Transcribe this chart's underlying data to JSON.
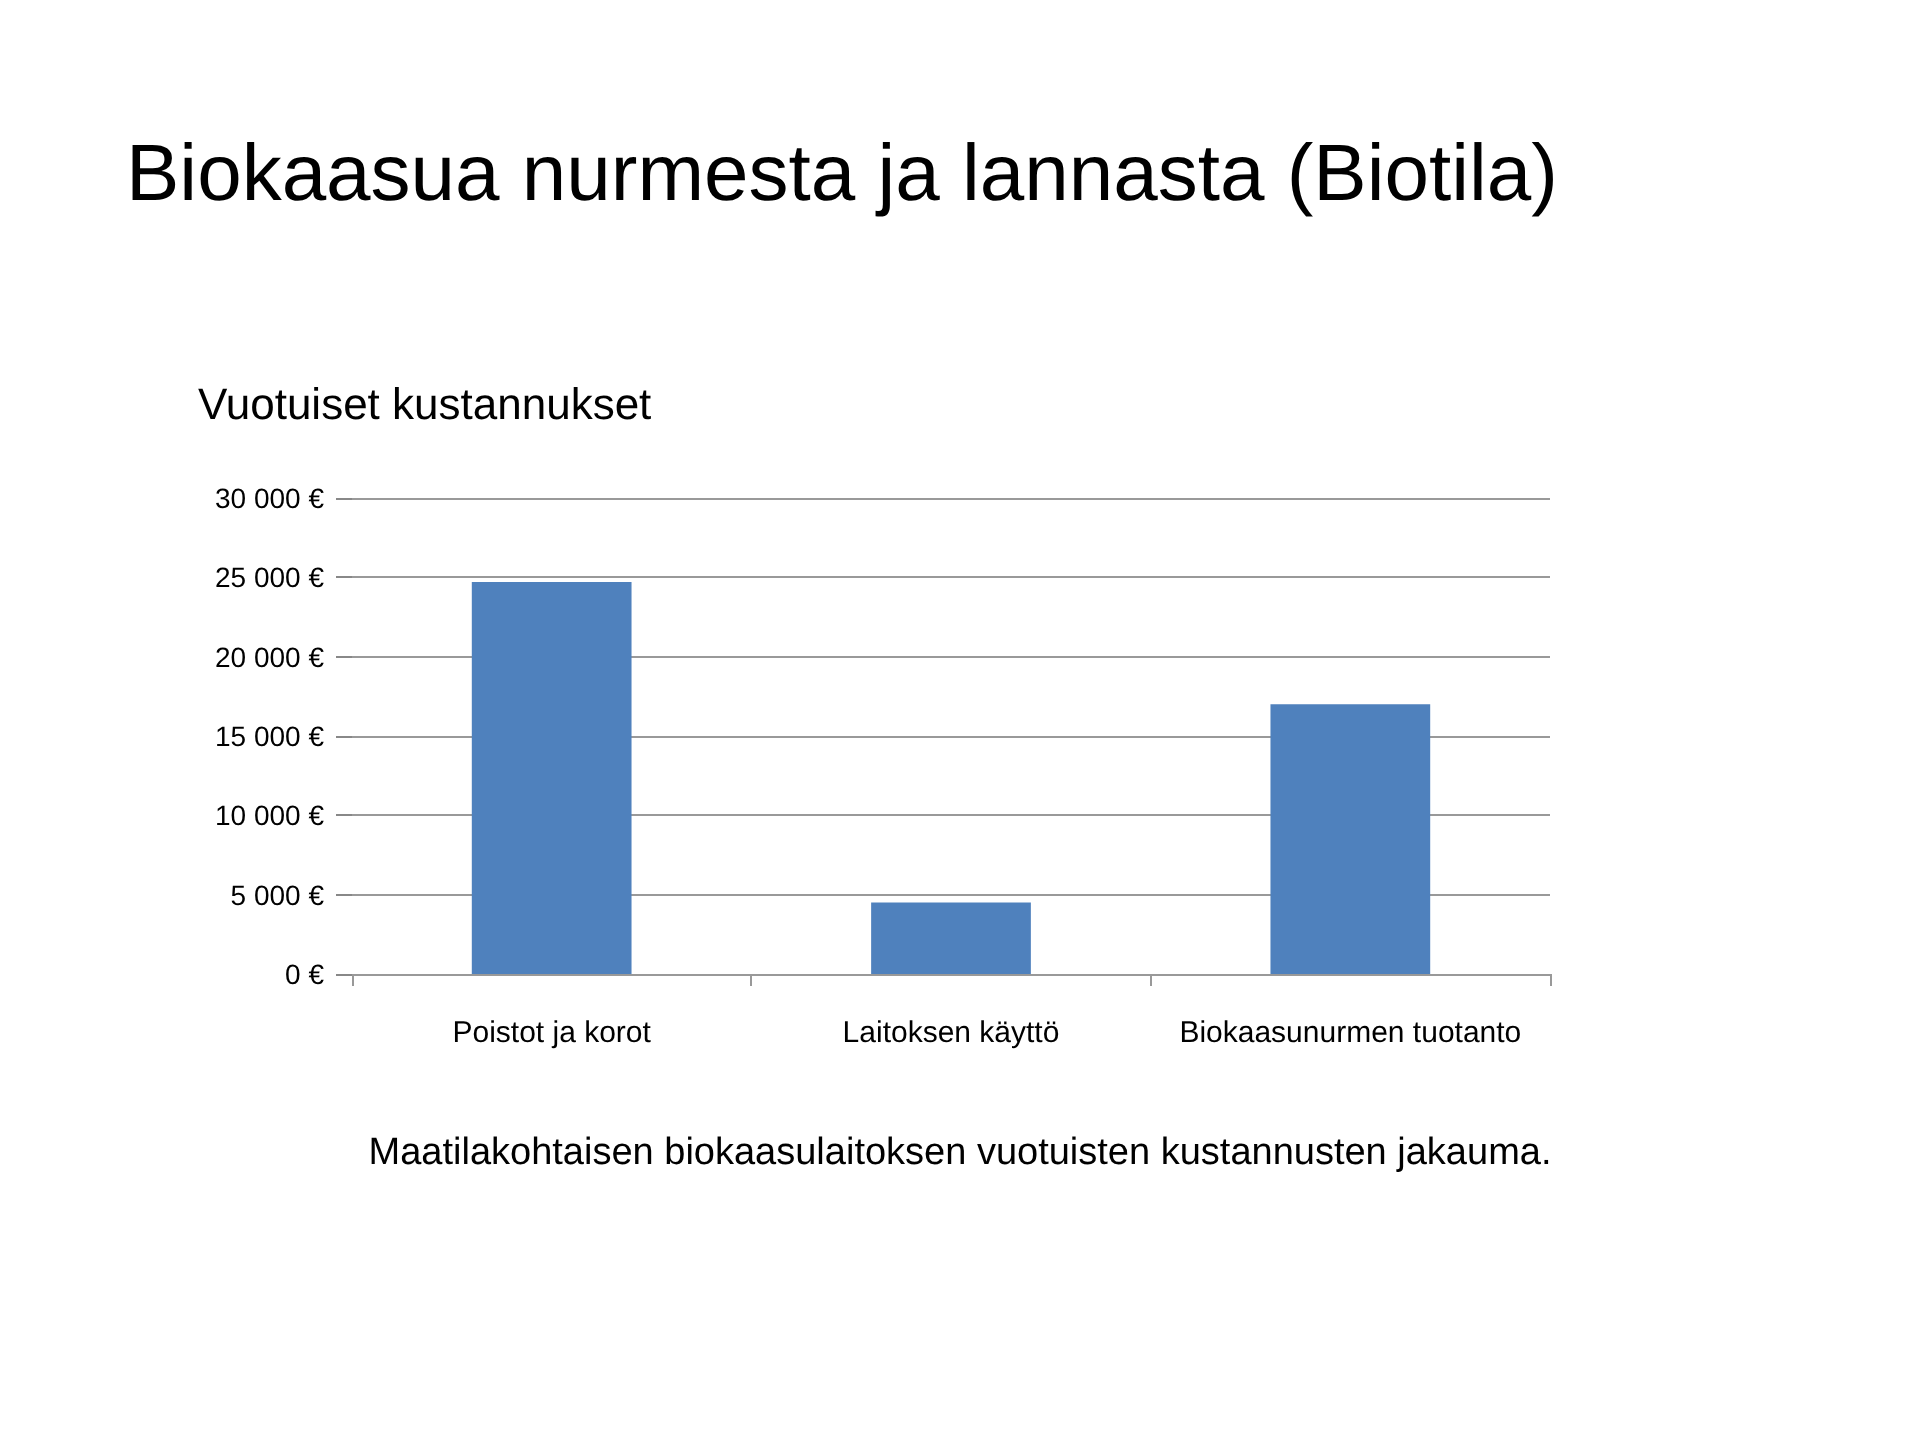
{
  "chart_data": {
    "type": "bar",
    "title": "Biokaasua nurmesta ja lannasta (Biotila)",
    "subtitle": "Vuotuiset kustannukset",
    "annotations": [
      "Maatilakohtaisen biokaasulaitoksen vuotuisten kustannusten jakauma."
    ],
    "categories": [
      "Poistot ja korot",
      "Laitoksen käyttö",
      "Biokaasunurmen tuotanto"
    ],
    "values": [
      24700,
      4500,
      17000
    ],
    "color": "#4f81bd",
    "ylim": [
      0,
      30000
    ],
    "yticks": [
      {
        "value": 0,
        "label": "0 €"
      },
      {
        "value": 5000,
        "label": "5 000 €"
      },
      {
        "value": 10000,
        "label": "10 000 €"
      },
      {
        "value": 15000,
        "label": "15 000 €"
      },
      {
        "value": 20000,
        "label": "20 000 €"
      },
      {
        "value": 25000,
        "label": "25 000 €"
      },
      {
        "value": 30000,
        "label": "30 000 €"
      }
    ],
    "grid": "y"
  }
}
